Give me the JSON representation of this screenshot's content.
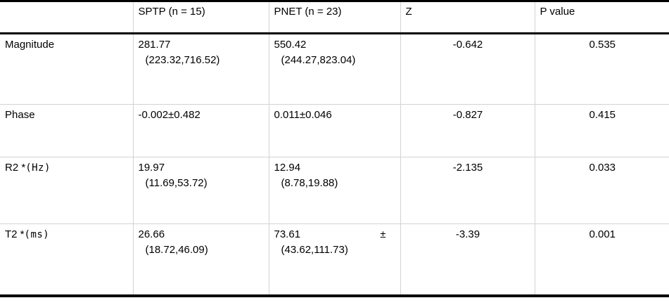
{
  "style": {
    "text_color": "#000000",
    "rule_color": "#000000",
    "grid_line_color": "#d3d3d3",
    "background": "#ffffff"
  },
  "header": {
    "col0": "",
    "col1": "SPTP (n = 15)",
    "col2": "PNET (n = 23)",
    "col3": "Z",
    "col4": "P value"
  },
  "rows": [
    {
      "label": "Magnitude",
      "unit": "",
      "sptp_line1": "281.77",
      "sptp_line2": "(223.32,716.52)",
      "pnet_line1": "550.42",
      "pnet_suffix": "",
      "pnet_line2": "(244.27,823.04)",
      "z": "-0.642",
      "p": "0.535"
    },
    {
      "label": "Phase",
      "unit": "",
      "sptp_line1": "-0.002±0.482",
      "sptp_line2": "",
      "pnet_line1": "0.011±0.046",
      "pnet_suffix": "",
      "pnet_line2": "",
      "z": "-0.827",
      "p": "0.415"
    },
    {
      "label": "R2 *",
      "unit": "(Hz)",
      "sptp_line1": "19.97",
      "sptp_line2": "(11.69,53.72)",
      "pnet_line1": "12.94",
      "pnet_suffix": "",
      "pnet_line2": "(8.78,19.88)",
      "z": "-2.135",
      "p": "0.033"
    },
    {
      "label": "T2 *",
      "unit": "(ms)",
      "sptp_line1": "26.66",
      "sptp_line2": "(18.72,46.09)",
      "pnet_line1": "73.61",
      "pnet_suffix": "±",
      "pnet_line2": "(43.62,111.73)",
      "z": "-3.39",
      "p": "0.001"
    }
  ]
}
